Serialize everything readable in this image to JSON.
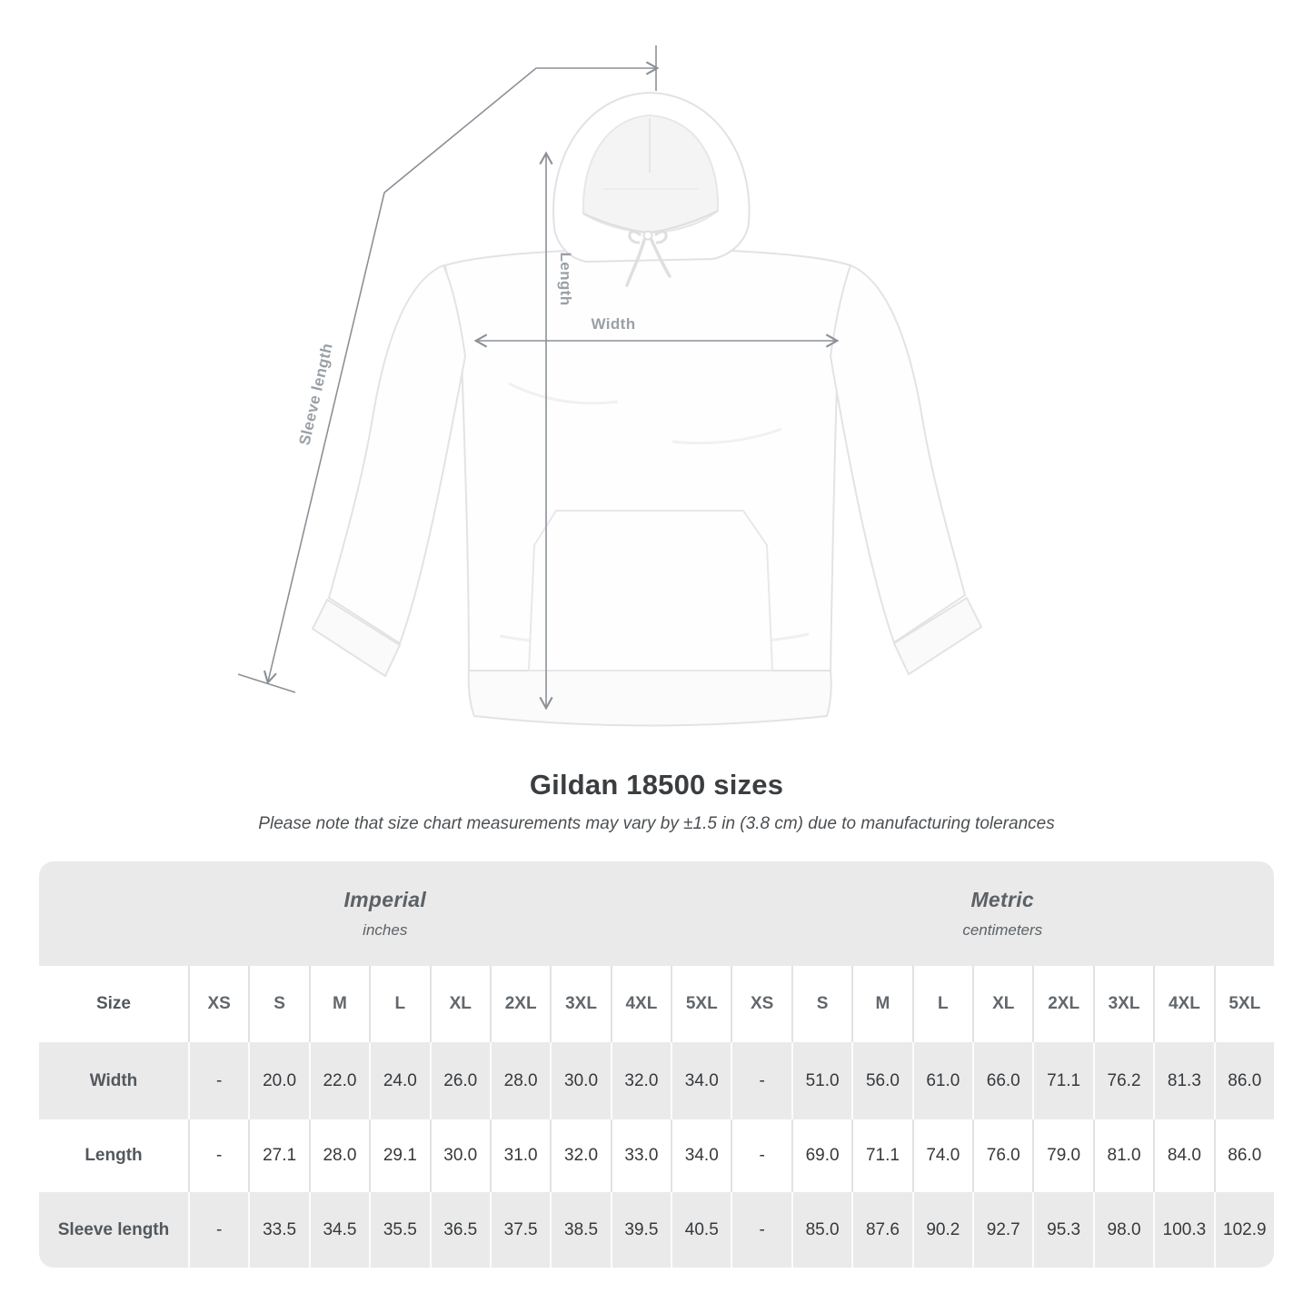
{
  "title": "Gildan 18500 sizes",
  "note": "Please note that size chart measurements may vary by ±1.5 in (3.8 cm) due to manufacturing tolerances",
  "diagram": {
    "product": "hooded-sweatshirt",
    "labels": {
      "width": "Width",
      "length": "Length",
      "sleeve_length": "Sleeve length"
    }
  },
  "chart_data": {
    "type": "table",
    "title": "Gildan 18500 sizes",
    "size_header": "Size",
    "sizes": [
      "XS",
      "S",
      "M",
      "L",
      "XL",
      "2XL",
      "3XL",
      "4XL",
      "5XL"
    ],
    "unit_groups": [
      {
        "label": "Imperial",
        "sublabel": "inches"
      },
      {
        "label": "Metric",
        "sublabel": "centimeters"
      }
    ],
    "rows": [
      {
        "label": "Width",
        "imperial": [
          "-",
          "20.0",
          "22.0",
          "24.0",
          "26.0",
          "28.0",
          "30.0",
          "32.0",
          "34.0"
        ],
        "metric": [
          "-",
          "51.0",
          "56.0",
          "61.0",
          "66.0",
          "71.1",
          "76.2",
          "81.3",
          "86.0"
        ]
      },
      {
        "label": "Length",
        "imperial": [
          "-",
          "27.1",
          "28.0",
          "29.1",
          "30.0",
          "31.0",
          "32.0",
          "33.0",
          "34.0"
        ],
        "metric": [
          "-",
          "69.0",
          "71.1",
          "74.0",
          "76.0",
          "79.0",
          "81.0",
          "84.0",
          "86.0"
        ]
      },
      {
        "label": "Sleeve length",
        "imperial": [
          "-",
          "33.5",
          "34.5",
          "35.5",
          "36.5",
          "37.5",
          "38.5",
          "39.5",
          "40.5"
        ],
        "metric": [
          "-",
          "85.0",
          "87.6",
          "90.2",
          "92.7",
          "95.3",
          "98.0",
          "100.3",
          "102.9"
        ]
      }
    ]
  },
  "colors": {
    "measure_line": "#8b9197",
    "measure_label": "#9aa0a6",
    "table_stripe": "#eaeaea",
    "header_text": "#5c6166",
    "value_text": "#36393c"
  }
}
